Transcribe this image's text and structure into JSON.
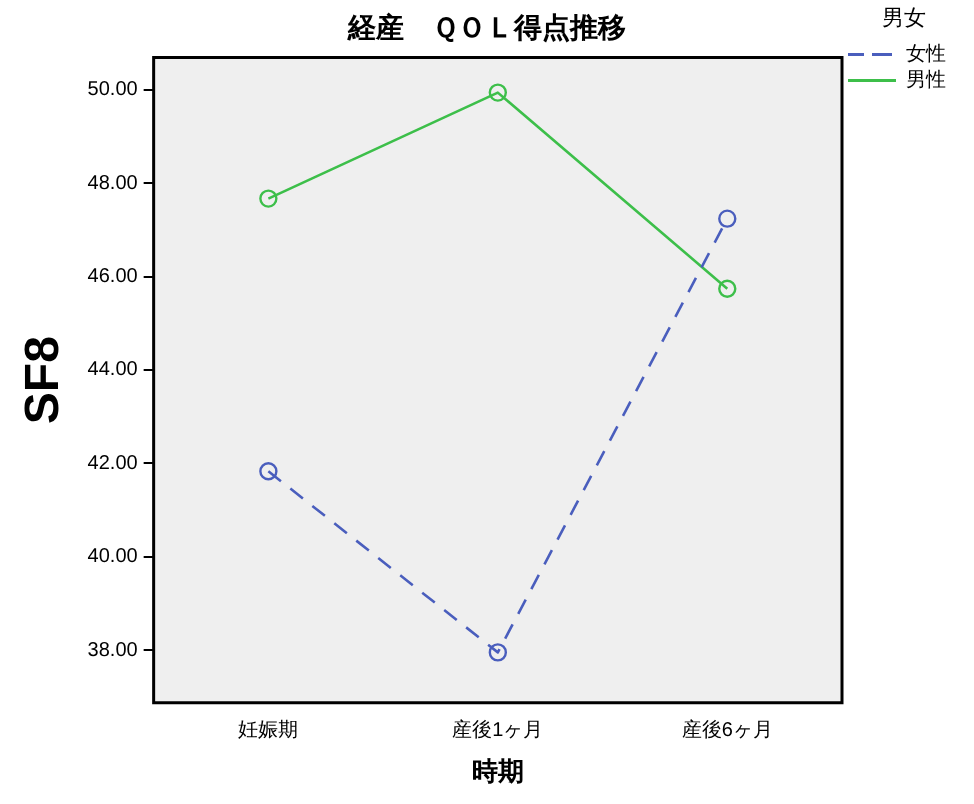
{
  "chart_data": {
    "type": "line",
    "title": "経産　ＱＯＬ得点推移",
    "xlabel": "時期",
    "ylabel": "SF8",
    "legend_title": "男女",
    "categories": [
      "妊娠期",
      "産後1ヶ月",
      "産後6ヶ月"
    ],
    "series": [
      {
        "name": "女性",
        "color": "#4a5ebd",
        "values": [
          41.83,
          37.95,
          47.24
        ],
        "line_style": "dashed"
      },
      {
        "name": "男性",
        "color": "#3dbf4a",
        "values": [
          47.67,
          49.94,
          45.74
        ],
        "line_style": "solid"
      }
    ],
    "ylim": [
      36.87,
      50.69
    ],
    "yticks": [
      {
        "value": 38,
        "label": "38.00"
      },
      {
        "value": 40,
        "label": "40.00"
      },
      {
        "value": 42,
        "label": "42.00"
      },
      {
        "value": 44,
        "label": "44.00"
      },
      {
        "value": 46,
        "label": "46.00"
      },
      {
        "value": 48,
        "label": "48.00"
      },
      {
        "value": 50,
        "label": "50.00"
      }
    ],
    "grid": false,
    "legend": "top right",
    "marker": "circle"
  }
}
